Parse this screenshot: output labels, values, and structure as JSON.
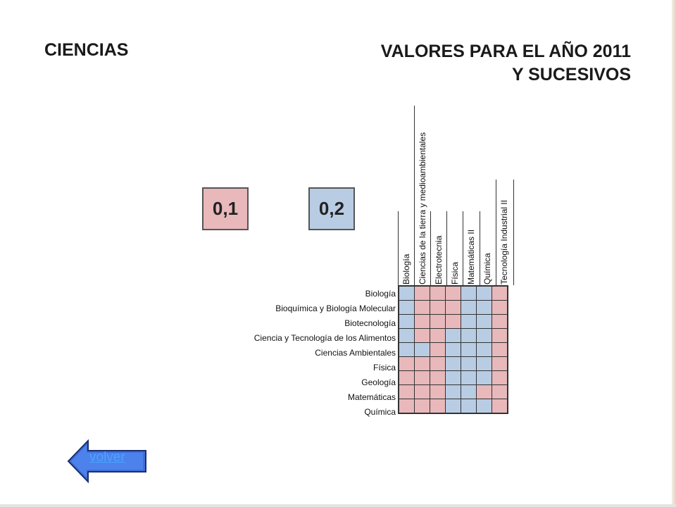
{
  "header": {
    "left_title": "CIENCIAS",
    "right_title_line1": "VALORES PARA EL AÑO 2011",
    "right_title_line2": "Y SUCESIVOS"
  },
  "legend": [
    {
      "label": "0,1",
      "color": "#e8b8bb"
    },
    {
      "label": "0,2",
      "color": "#b8cce4"
    }
  ],
  "matrix": {
    "columns": [
      "Biología",
      "Ciencias de la tierra y medioambientales",
      "Electrotecnia",
      "Física",
      "Matemáticas II",
      "Química",
      "Tecnología Industrial II"
    ],
    "rows": [
      "Biología",
      "Bioquímica y Biología Molecular",
      "Biotecnología",
      "Ciencia y Tecnología de los Alimentos",
      "Ciencias Ambientales",
      "Física",
      "Geología",
      "Matemáticas",
      "Química"
    ],
    "values": [
      [
        0.2,
        0.1,
        0.1,
        0.1,
        0.2,
        0.2,
        0.1
      ],
      [
        0.2,
        0.1,
        0.1,
        0.1,
        0.2,
        0.2,
        0.1
      ],
      [
        0.2,
        0.1,
        0.1,
        0.1,
        0.2,
        0.2,
        0.1
      ],
      [
        0.2,
        0.1,
        0.1,
        0.2,
        0.2,
        0.2,
        0.1
      ],
      [
        0.2,
        0.2,
        0.1,
        0.2,
        0.2,
        0.2,
        0.1
      ],
      [
        0.1,
        0.1,
        0.1,
        0.2,
        0.2,
        0.2,
        0.1
      ],
      [
        0.1,
        0.1,
        0.1,
        0.2,
        0.2,
        0.2,
        0.1
      ],
      [
        0.1,
        0.1,
        0.1,
        0.2,
        0.2,
        0.1,
        0.1
      ],
      [
        0.1,
        0.1,
        0.1,
        0.2,
        0.2,
        0.2,
        0.1
      ]
    ]
  },
  "nav": {
    "back_label": "volver",
    "back_icon": "left-arrow-icon"
  },
  "colors": {
    "low_value": "#e8b8bb",
    "high_value": "#b8cce4",
    "link": "#4aa3ff",
    "arrow_fill": "#3f6fd8"
  }
}
